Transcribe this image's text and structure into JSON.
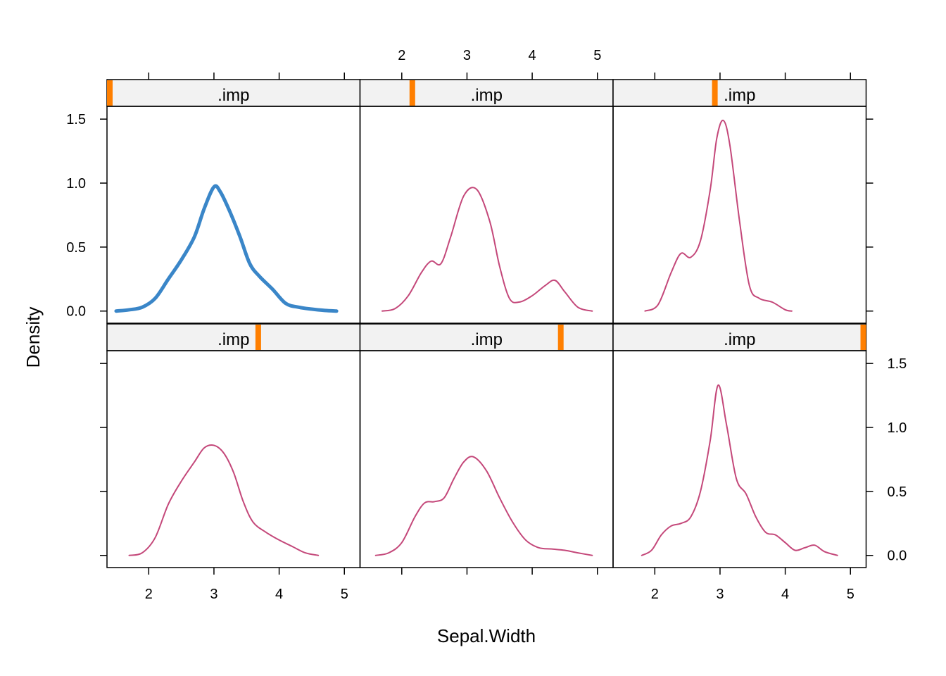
{
  "chart_data": {
    "type": "line",
    "title": "",
    "xlabel": "Sepal.Width",
    "ylabel": "Density",
    "xlim": [
      1.36,
      5.24
    ],
    "ylim": [
      -0.095,
      1.6
    ],
    "x_ticks": [
      "2",
      "3",
      "4",
      "5"
    ],
    "x_tick_values": [
      2,
      3,
      4,
      5
    ],
    "y_ticks": [
      "0.0",
      "0.5",
      "1.0",
      "1.5"
    ],
    "y_tick_values": [
      0,
      0.5,
      1.0,
      1.5
    ],
    "layout": {
      "rows": 2,
      "cols": 3
    },
    "colors": {
      "observed": "#3a86c8",
      "imputed": "#c4487a",
      "strip_background": "#f2f2f2",
      "strip_marker": "#ff7f00",
      "frame": "#000000"
    },
    "panels": [
      {
        "strip_label": ".imp",
        "imp_level": 0,
        "strip_marker_fraction": 0.0,
        "series": {
          "name": "",
          "kind": "observed",
          "x": [
            1.5,
            1.7,
            1.9,
            2.1,
            2.3,
            2.5,
            2.7,
            2.85,
            3.0,
            3.1,
            3.25,
            3.4,
            3.55,
            3.7,
            3.9,
            4.1,
            4.3,
            4.5,
            4.7,
            4.88
          ],
          "y": [
            0.0,
            0.01,
            0.03,
            0.1,
            0.25,
            0.4,
            0.58,
            0.8,
            0.97,
            0.93,
            0.77,
            0.58,
            0.37,
            0.27,
            0.17,
            0.06,
            0.03,
            0.015,
            0.005,
            0.0
          ]
        }
      },
      {
        "strip_label": ".imp",
        "imp_level": 1,
        "strip_marker_fraction": 0.2,
        "series": {
          "name": "",
          "kind": "imputed",
          "x": [
            1.7,
            1.9,
            2.1,
            2.3,
            2.45,
            2.6,
            2.75,
            2.95,
            3.15,
            3.35,
            3.5,
            3.65,
            3.8,
            4.0,
            4.2,
            4.35,
            4.5,
            4.7,
            4.92
          ],
          "y": [
            0.0,
            0.02,
            0.12,
            0.3,
            0.39,
            0.37,
            0.58,
            0.9,
            0.95,
            0.7,
            0.35,
            0.1,
            0.07,
            0.12,
            0.2,
            0.24,
            0.15,
            0.03,
            0.0
          ]
        }
      },
      {
        "strip_label": ".imp",
        "imp_level": 2,
        "strip_marker_fraction": 0.4,
        "series": {
          "name": "",
          "kind": "imputed",
          "x": [
            1.85,
            2.05,
            2.25,
            2.4,
            2.55,
            2.7,
            2.85,
            2.95,
            3.05,
            3.15,
            3.3,
            3.45,
            3.6,
            3.8,
            4.0,
            4.1
          ],
          "y": [
            0.0,
            0.05,
            0.3,
            0.45,
            0.42,
            0.55,
            0.95,
            1.35,
            1.49,
            1.3,
            0.7,
            0.2,
            0.1,
            0.07,
            0.01,
            0.0
          ]
        }
      },
      {
        "strip_label": ".imp",
        "imp_level": 3,
        "strip_marker_fraction": 0.6,
        "series": {
          "name": "",
          "kind": "imputed",
          "x": [
            1.7,
            1.9,
            2.1,
            2.3,
            2.5,
            2.7,
            2.85,
            3.0,
            3.15,
            3.3,
            3.45,
            3.6,
            3.8,
            4.0,
            4.2,
            4.4,
            4.6
          ],
          "y": [
            0.0,
            0.02,
            0.14,
            0.4,
            0.58,
            0.73,
            0.84,
            0.86,
            0.8,
            0.65,
            0.42,
            0.26,
            0.18,
            0.12,
            0.07,
            0.02,
            0.0
          ]
        }
      },
      {
        "strip_label": ".imp",
        "imp_level": 4,
        "strip_marker_fraction": 0.8,
        "series": {
          "name": "",
          "kind": "imputed",
          "x": [
            1.6,
            1.8,
            2.0,
            2.2,
            2.35,
            2.5,
            2.65,
            2.8,
            2.95,
            3.1,
            3.3,
            3.5,
            3.7,
            3.9,
            4.1,
            4.3,
            4.5,
            4.7,
            4.92
          ],
          "y": [
            0.0,
            0.02,
            0.1,
            0.3,
            0.41,
            0.42,
            0.45,
            0.6,
            0.73,
            0.77,
            0.66,
            0.45,
            0.26,
            0.12,
            0.06,
            0.05,
            0.04,
            0.02,
            0.0
          ]
        }
      },
      {
        "strip_label": ".imp",
        "imp_level": 5,
        "strip_marker_fraction": 1.0,
        "series": {
          "name": "",
          "kind": "imputed",
          "x": [
            1.8,
            1.95,
            2.1,
            2.25,
            2.4,
            2.55,
            2.7,
            2.85,
            2.97,
            3.1,
            3.25,
            3.4,
            3.55,
            3.7,
            3.85,
            4.0,
            4.15,
            4.3,
            4.45,
            4.6,
            4.8
          ],
          "y": [
            0.0,
            0.04,
            0.16,
            0.23,
            0.25,
            0.3,
            0.5,
            0.9,
            1.33,
            1.02,
            0.6,
            0.48,
            0.3,
            0.18,
            0.16,
            0.1,
            0.04,
            0.06,
            0.08,
            0.03,
            0.0
          ]
        }
      }
    ]
  }
}
